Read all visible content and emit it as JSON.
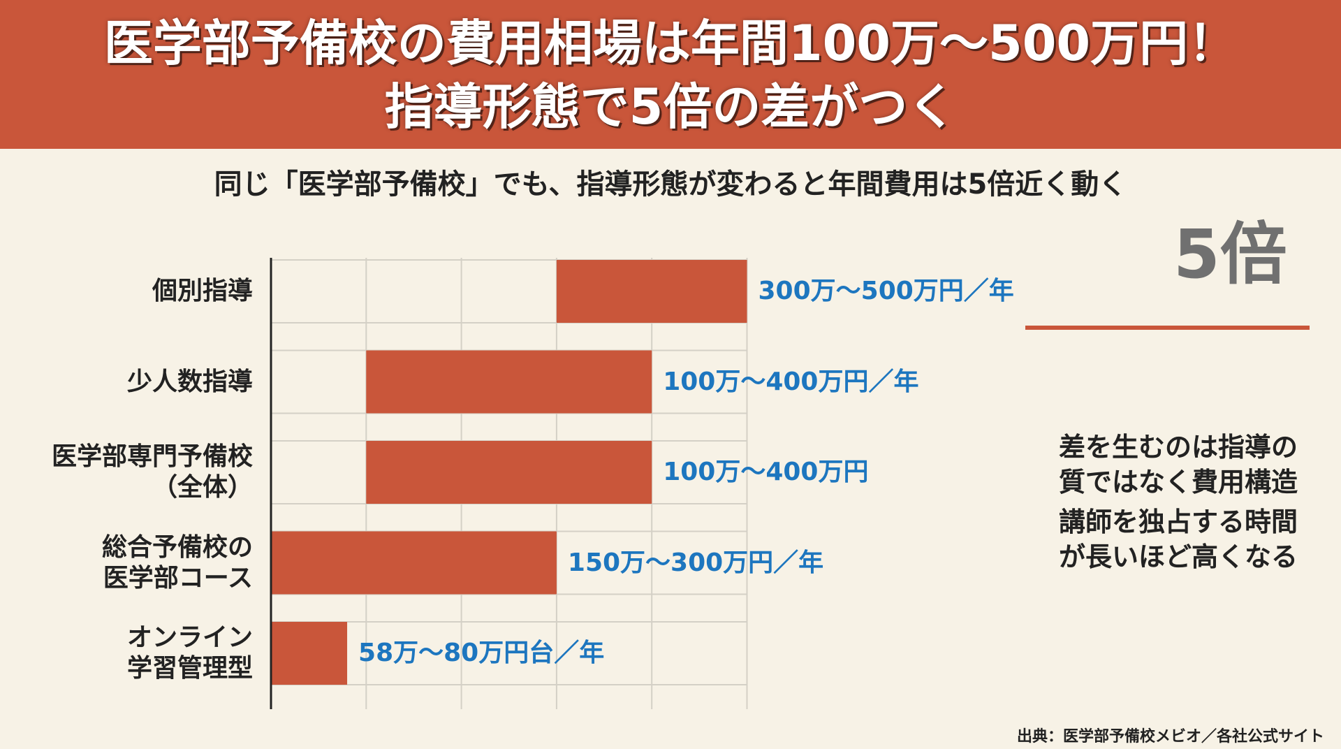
{
  "header": {
    "title_line1": "医学部予備校の費用相場は年間100万～500万円！",
    "title_line2": "指導形態で5倍の差がつく"
  },
  "subtitle": "同じ「医学部予備校」でも、指導形態が変わると年間費用は5倍近く動く",
  "highlight": {
    "text": "5倍"
  },
  "notes": [
    {
      "line1": "差を生むのは指導の",
      "line2": "質ではなく費用構造"
    },
    {
      "line1": "講師を独占する時間",
      "line2": "が長いほど高くなる"
    }
  ],
  "source": "出典：医学部予備校メビオ／各社公式サイト",
  "colors": {
    "header_bg": "#c9563a",
    "bar": "#c9563a",
    "value_text": "#1d76bf",
    "background": "#f7f2e6",
    "grid": "#d4d0c6",
    "axis": "#222222",
    "highlight_text": "#707070"
  },
  "chart_data": {
    "type": "bar",
    "orientation": "horizontal",
    "grid": true,
    "categories": [
      {
        "line1": "個別指導",
        "line2": ""
      },
      {
        "line1": "少人数指導",
        "line2": ""
      },
      {
        "line1": "医学部専門予備校",
        "line2": "（全体）"
      },
      {
        "line1": "総合予備校の",
        "line2": "医学部コース"
      },
      {
        "line1": "オンライン",
        "line2": "学習管理型"
      }
    ],
    "ranges": [
      {
        "low": 300,
        "high": 500,
        "label": "300万～500万円／年"
      },
      {
        "low": 100,
        "high": 400,
        "label": "100万～400万円／年"
      },
      {
        "low": 100,
        "high": 400,
        "label": "100万～400万円"
      },
      {
        "low": 150,
        "high": 300,
        "label": "150万～300万円／年"
      },
      {
        "low": 58,
        "high": 80,
        "label": "58万～80万円台／年"
      }
    ],
    "unit": "万円"
  }
}
